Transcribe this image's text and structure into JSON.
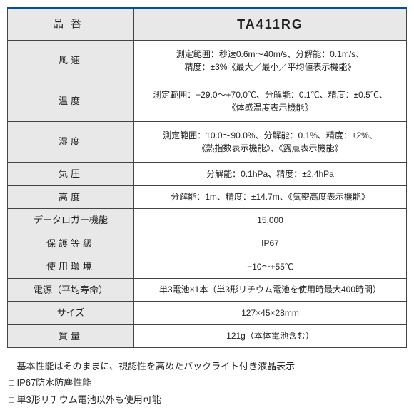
{
  "header": {
    "label_col": "品番",
    "value_col": "TA411RG"
  },
  "rows": [
    {
      "label": "風速",
      "value": "測定範囲：秒速0.6m～40m/s、分解能：0.1m/s、\n精度：±3%《最大／最小／平均値表示機能》",
      "tall": true
    },
    {
      "label": "温度",
      "value": "測定範囲：−29.0～+70.0℃、分解能：0.1℃、精度：±0.5℃、\n《体感温度表示機能》",
      "tall": true
    },
    {
      "label": "湿度",
      "value": "測定範囲：10.0～90.0%、分解能：0.1%、精度：±2%、\n《熱指数表示機能》、《露点表示機能》",
      "tall": true
    },
    {
      "label": "気圧",
      "value": "分解能：0.1hPa、精度：±2.4hPa"
    },
    {
      "label": "高度",
      "value": "分解能：1m、精度：±14.7m、《気密高度表示機能》"
    },
    {
      "label": "データロガー機能",
      "value": "15,000",
      "ls": "0"
    },
    {
      "label": "保護等級",
      "value": "IP67"
    },
    {
      "label": "使用環境",
      "value": "−10～+55℃"
    },
    {
      "label": "電源（平均寿命）",
      "value": "単3電池×1本（単3形リチウム電池を使用時最大400時間）",
      "ls": "0"
    },
    {
      "label": "サイズ",
      "value": "127×45×28mm",
      "ls": "0"
    },
    {
      "label": "質量",
      "value": "121g（本体電池含む）"
    }
  ],
  "notes": [
    "□ 基本性能はそのままに、視認性を高めたバックライト付き液晶表示",
    "□ IP67防水防塵性能",
    "□ 単3形リチウム電池以外も使用可能"
  ]
}
